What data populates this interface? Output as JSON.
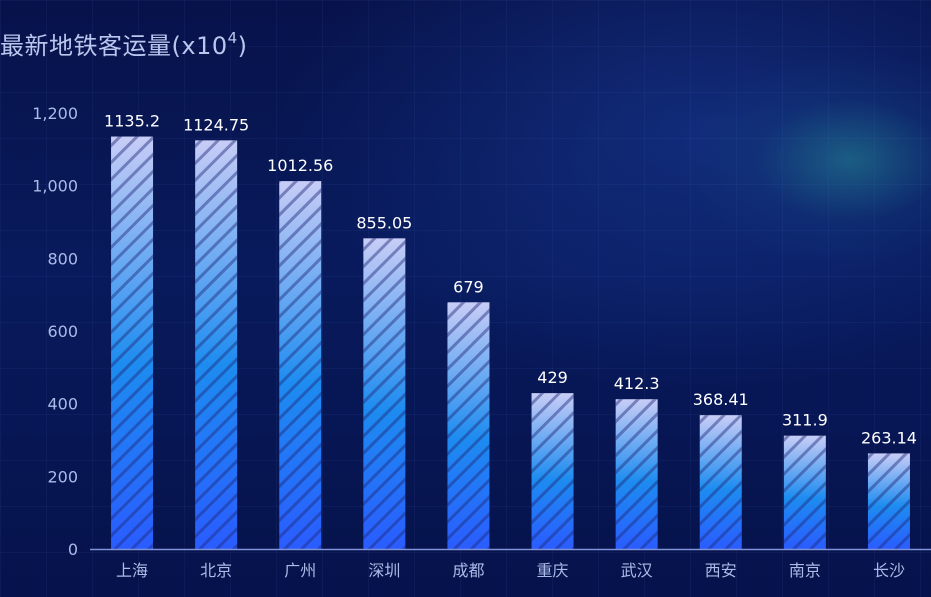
{
  "title": {
    "text": "最新地铁客运量(x10",
    "superscript": "4",
    "suffix": ")"
  },
  "chart_data": {
    "type": "bar",
    "categories": [
      "上海",
      "北京",
      "广州",
      "深圳",
      "成都",
      "重庆",
      "武汉",
      "西安",
      "南京",
      "长沙"
    ],
    "values": [
      1135.2,
      1124.75,
      1012.56,
      855.05,
      679,
      429,
      412.3,
      368.41,
      311.9,
      263.14
    ],
    "value_labels": [
      "1135.2",
      "1124.75",
      "1012.56",
      "855.05",
      "679",
      "429",
      "412.3",
      "368.41",
      "311.9",
      "263.14"
    ],
    "y_ticks": [
      "0",
      "200",
      "400",
      "600",
      "800",
      "1,000",
      "1,200"
    ],
    "ylim": [
      0,
      1200
    ],
    "grid": false,
    "legend": "none",
    "colors": {
      "bar_top": "#c8cdf6",
      "bar_mid": "#1d8cf0",
      "bar_bottom": "#2a5cff",
      "axis": "#7e93d8",
      "tick_text": "#aabbe8",
      "value_text": "#ffffff"
    }
  }
}
